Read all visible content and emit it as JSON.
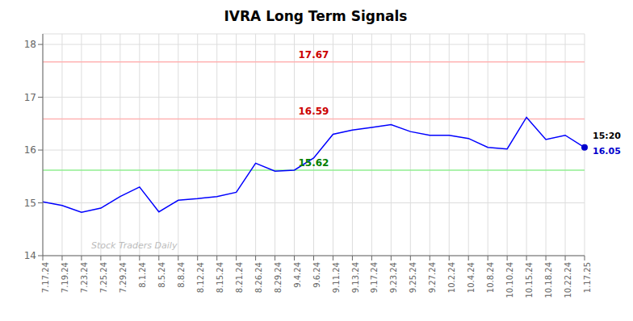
{
  "chart_data": {
    "type": "line",
    "title": "IVRA Long Term Signals",
    "categories": [
      "7.17.24",
      "7.19.24",
      "7.23.24",
      "7.25.24",
      "7.29.24",
      "8.1.24",
      "8.5.24",
      "8.8.24",
      "8.12.24",
      "8.15.24",
      "8.21.24",
      "8.26.24",
      "8.29.24",
      "9.4.24",
      "9.6.24",
      "9.11.24",
      "9.13.24",
      "9.17.24",
      "9.23.24",
      "9.25.24",
      "9.27.24",
      "10.2.24",
      "10.4.24",
      "10.8.24",
      "10.10.24",
      "10.15.24",
      "10.18.24",
      "10.22.24",
      "1.17.25"
    ],
    "values": [
      15.02,
      14.95,
      14.82,
      14.9,
      15.12,
      15.3,
      14.83,
      15.05,
      15.08,
      15.12,
      15.2,
      15.75,
      15.6,
      15.62,
      15.85,
      16.3,
      16.38,
      16.43,
      16.48,
      16.35,
      16.28,
      16.28,
      16.22,
      16.05,
      16.02,
      16.62,
      16.2,
      16.28,
      16.05
    ],
    "color": "#0000FF",
    "ylim": [
      14.0,
      18.2
    ],
    "yticks": [
      14,
      15,
      16,
      17,
      18
    ],
    "grid": true,
    "hlines": [
      {
        "value": 17.67,
        "color": "#FFB3B3",
        "label_color": "#CC0000"
      },
      {
        "value": 16.59,
        "color": "#FFB3B3",
        "label_color": "#CC0000"
      },
      {
        "value": 15.62,
        "color": "#90EE90",
        "label_color": "#008000"
      }
    ],
    "last_point": {
      "time": "15:20",
      "time_color": "#000000",
      "value": 16.05,
      "color": "#0000CC"
    },
    "watermark": "Stock Traders Daily"
  }
}
